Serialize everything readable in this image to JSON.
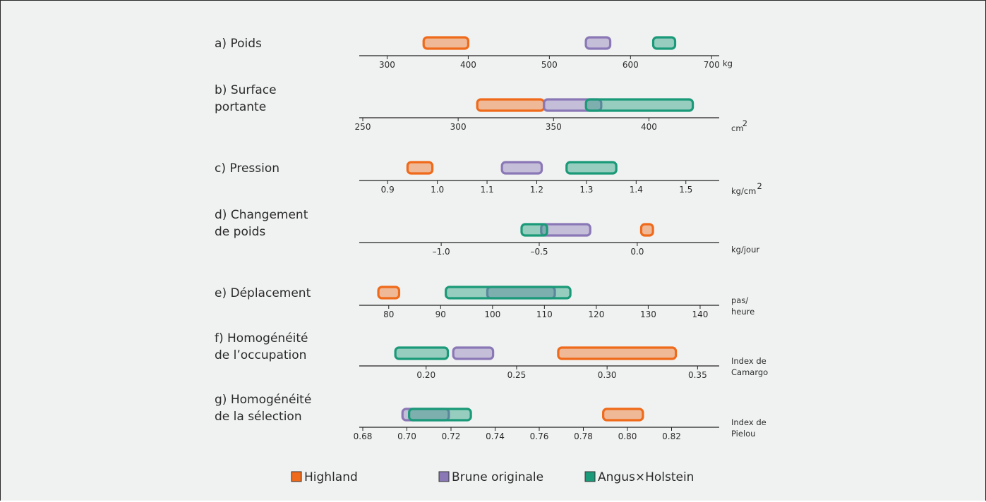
{
  "chart_data": {
    "type": "range-bar",
    "series_colors": {
      "Highland": "#ef6a1a",
      "Brune originale": "#8a78b6",
      "Angus×Holstein": "#1a9a78"
    },
    "legend": [
      "Highland",
      "Brune originale",
      "Angus×Holstein"
    ],
    "panels": [
      {
        "id": "a",
        "label_lines": [
          "a) Poids"
        ],
        "unit_lines": [
          "kg"
        ],
        "axis_range": [
          270,
          705
        ],
        "ticks": [
          300,
          400,
          500,
          600,
          700
        ],
        "tick_labels": [
          "300",
          "400",
          "500",
          "600",
          "700"
        ],
        "ranges": [
          {
            "series": "Highland",
            "low": 345,
            "high": 400
          },
          {
            "series": "Brune originale",
            "low": 545,
            "high": 575
          },
          {
            "series": "Angus×Holstein",
            "low": 628,
            "high": 655
          }
        ]
      },
      {
        "id": "b",
        "label_lines": [
          "b) Surface",
          "portante"
        ],
        "unit_lines": [
          "cm",
          "2"
        ],
        "axis_range": [
          250,
          435
        ],
        "ticks": [
          250,
          300,
          350,
          400
        ],
        "tick_labels": [
          "250",
          "300",
          "350",
          "400"
        ],
        "ranges": [
          {
            "series": "Highland",
            "low": 310,
            "high": 345
          },
          {
            "series": "Brune originale",
            "low": 345,
            "high": 375
          },
          {
            "series": "Angus×Holstein",
            "low": 367,
            "high": 423
          }
        ]
      },
      {
        "id": "c",
        "label_lines": [
          "c) Pression"
        ],
        "unit_lines": [
          "kg/cm",
          "2"
        ],
        "axis_range": [
          0.85,
          1.56
        ],
        "ticks": [
          0.9,
          1.0,
          1.1,
          1.2,
          1.3,
          1.4,
          1.5
        ],
        "tick_labels": [
          "0.9",
          "1.0",
          "1.1",
          "1.2",
          "1.3",
          "1.4",
          "1.5"
        ],
        "ranges": [
          {
            "series": "Highland",
            "low": 0.94,
            "high": 0.99
          },
          {
            "series": "Brune originale",
            "low": 1.13,
            "high": 1.21
          },
          {
            "series": "Angus×Holstein",
            "low": 1.26,
            "high": 1.36
          }
        ]
      },
      {
        "id": "d",
        "label_lines": [
          "d) Changement",
          "de poids"
        ],
        "unit_lines": [
          "kg/jour"
        ],
        "axis_range": [
          -1.4,
          0.4
        ],
        "ticks": [
          -1.0,
          -0.5,
          0.0
        ],
        "tick_labels": [
          "–1.0",
          "–0.5",
          "0.0"
        ],
        "ranges": [
          {
            "series": "Brune originale",
            "low": -0.49,
            "high": -0.24
          },
          {
            "series": "Angus×Holstein",
            "low": -0.59,
            "high": -0.46
          },
          {
            "series": "Highland",
            "low": 0.02,
            "high": 0.08
          }
        ]
      },
      {
        "id": "e",
        "label_lines": [
          "e) Déplacement"
        ],
        "unit_lines": [
          "pas/",
          "heure"
        ],
        "axis_range": [
          75,
          143
        ],
        "ticks": [
          80,
          90,
          100,
          110,
          120,
          130,
          140
        ],
        "tick_labels": [
          "80",
          "90",
          "100",
          "110",
          "120",
          "130",
          "140"
        ],
        "ranges": [
          {
            "series": "Highland",
            "low": 78,
            "high": 82
          },
          {
            "series": "Brune originale",
            "low": 99,
            "high": 112
          },
          {
            "series": "Angus×Holstein",
            "low": 91,
            "high": 115
          }
        ]
      },
      {
        "id": "f",
        "label_lines": [
          "f) Homogénéité",
          "de l’occupation"
        ],
        "unit_lines": [
          "Index de",
          "Camargo"
        ],
        "axis_range": [
          0.165,
          0.36
        ],
        "ticks": [
          0.2,
          0.25,
          0.3,
          0.35
        ],
        "tick_labels": [
          "0.20",
          "0.25",
          "0.30",
          "0.35"
        ],
        "ranges": [
          {
            "series": "Angus×Holstein",
            "low": 0.183,
            "high": 0.212
          },
          {
            "series": "Brune originale",
            "low": 0.215,
            "high": 0.237
          },
          {
            "series": "Highland",
            "low": 0.273,
            "high": 0.338
          }
        ]
      },
      {
        "id": "g",
        "label_lines": [
          "g) Homogénéité",
          "de la sélection"
        ],
        "unit_lines": [
          "Index de",
          "Pielou"
        ],
        "axis_range": [
          0.68,
          0.84
        ],
        "ticks": [
          0.68,
          0.7,
          0.72,
          0.74,
          0.76,
          0.78,
          0.8,
          0.82
        ],
        "tick_labels": [
          "0.68",
          "0.70",
          "0.72",
          "0.74",
          "0.76",
          "0.78",
          "0.80",
          "0.82"
        ],
        "ranges": [
          {
            "series": "Brune originale",
            "low": 0.698,
            "high": 0.719
          },
          {
            "series": "Angus×Holstein",
            "low": 0.701,
            "high": 0.729
          },
          {
            "series": "Highland",
            "low": 0.789,
            "high": 0.807
          }
        ]
      }
    ]
  }
}
